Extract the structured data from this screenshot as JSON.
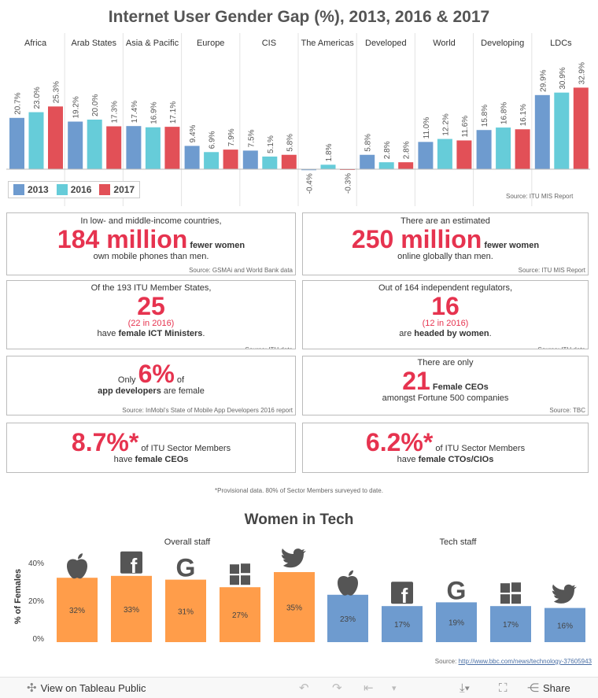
{
  "title": "Internet User Gender Gap (%), 2013, 2016 & 2017",
  "colors": {
    "y2013": "#6e9bcf",
    "y2016": "#66ccd9",
    "y2017": "#e25057",
    "accent": "#e6334f",
    "orange": "#ff9d4a",
    "blue": "#6e9bcf"
  },
  "chart_data": [
    {
      "type": "bar",
      "title": "Internet User Gender Gap (%), 2013, 2016 & 2017",
      "categories": [
        "Africa",
        "Arab States",
        "Asia & Pacific",
        "Europe",
        "CIS",
        "The Americas",
        "Developed",
        "World",
        "Developing",
        "LDCs"
      ],
      "series": [
        {
          "name": "2013",
          "values": [
            20.7,
            19.2,
            17.4,
            9.4,
            7.5,
            -0.4,
            5.8,
            11.0,
            15.8,
            29.9
          ]
        },
        {
          "name": "2016",
          "values": [
            23.0,
            20.0,
            16.9,
            6.9,
            5.1,
            1.8,
            2.8,
            12.2,
            16.8,
            30.9
          ]
        },
        {
          "name": "2017",
          "values": [
            25.3,
            17.3,
            17.1,
            7.9,
            5.8,
            -0.3,
            2.8,
            11.6,
            16.1,
            32.9
          ]
        }
      ],
      "labels": [
        [
          "20.7%",
          "23.0%",
          "25.3%"
        ],
        [
          "19.2%",
          "20.0%",
          "17.3%"
        ],
        [
          "17.4%",
          "16.9%",
          "17.1%"
        ],
        [
          "9.4%",
          "6.9%",
          "7.9%"
        ],
        [
          "7.5%",
          "5.1%",
          "5.8%"
        ],
        [
          "-0.4%",
          "1.8%",
          "-0.3%"
        ],
        [
          "5.8%",
          "2.8%",
          "2.8%"
        ],
        [
          "11.0%",
          "12.2%",
          "11.6%"
        ],
        [
          "15.8%",
          "16.8%",
          "16.1%"
        ],
        [
          "29.9%",
          "30.9%",
          "32.9%"
        ]
      ],
      "legend": [
        "2013",
        "2016",
        "2017"
      ],
      "legend_position": "bottom-left",
      "source": "Source: ITU MIS Report"
    },
    {
      "type": "bar",
      "title": "Women in Tech",
      "ylabel": "% of Females",
      "ylim": [
        0,
        40
      ],
      "yticks": [
        "0%",
        "20%",
        "40%"
      ],
      "groups": [
        {
          "name": "Overall staff",
          "icons": [
            "apple-icon",
            "facebook-icon",
            "google-icon",
            "windows-icon",
            "twitter-icon"
          ],
          "values": [
            32,
            33,
            31,
            27,
            35
          ],
          "labels": [
            "32%",
            "33%",
            "31%",
            "27%",
            "35%"
          ]
        },
        {
          "name": "Tech staff",
          "icons": [
            "apple-icon",
            "facebook-icon",
            "google-icon",
            "windows-icon",
            "twitter-icon"
          ],
          "values": [
            23,
            17,
            19,
            17,
            16
          ],
          "labels": [
            "23%",
            "17%",
            "19%",
            "17%",
            "16%"
          ]
        }
      ]
    }
  ],
  "cards": {
    "c1": {
      "pre": "In low- and middle-income countries,",
      "big": "184 million",
      "after": " fewer women",
      "post": "own mobile phones than men.",
      "src": "Source: GSMAi and World Bank data"
    },
    "c2": {
      "pre": "There are an estimated",
      "big": "250 million",
      "after": " fewer women",
      "post": "online globally than men.",
      "src": "Source: ITU MIS Report"
    },
    "c3": {
      "pre": "Of the 193 ITU Member States,",
      "big": "25",
      "sub": "(22 in 2016)",
      "post1": "have ",
      "post_b": "female ICT Ministers",
      "post2": ".",
      "src": "Source: ITU data"
    },
    "c4": {
      "pre": "Out of 164 independent regulators,",
      "big": "16",
      "sub": "(12 in 2016)",
      "post1": "are ",
      "post_b": "headed by women",
      "post2": ".",
      "src": "Source: ITU data"
    },
    "c5": {
      "pre": "Only ",
      "big": "6%",
      "after": " of",
      "post_b": "app developers",
      "post2": " are female",
      "src": "Source: InMobi's State of Mobile App Developers 2016 report"
    },
    "c6": {
      "pre": "There are only",
      "big": "21",
      "after": " Female CEOs",
      "post": "amongst Fortune 500 companies",
      "src": "Source: TBC"
    },
    "c7": {
      "big": "8.7%*",
      "after": " of ITU Sector Members",
      "post1": "have ",
      "post_b": "female CEOs"
    },
    "c8": {
      "big": "6.2%*",
      "after": " of ITU Sector Members",
      "post1": "have ",
      "post_b": "female CTOs/CIOs"
    }
  },
  "footnote": "*Provisional data. 80% of Sector Members surveyed to date.",
  "women_title": "Women in Tech",
  "bbc": {
    "label": "Source: ",
    "link": "http://www.bbc.com/news/technology-37605943"
  },
  "toolbar": {
    "view": "View on Tableau Public",
    "share": "Share"
  }
}
